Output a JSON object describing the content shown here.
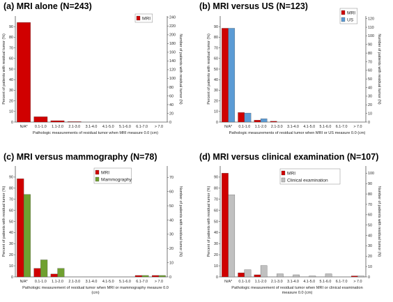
{
  "colors": {
    "mri": "#d00000",
    "us": "#5b9bd5",
    "mammography": "#70a030",
    "clinical": "#c0c0c0"
  },
  "chart_data": [
    {
      "panel": "(a)",
      "type": "bar",
      "title": "MRI alone (N=243)",
      "categories": [
        "N/A*",
        "0.1-1.0",
        "1.1-2.0",
        "2.1-3.0",
        "3.1-4.0",
        "4.1-5.0",
        "5.1-6.0",
        "6.1-7.0",
        "> 7.0"
      ],
      "series": [
        {
          "name": "MRI",
          "color": "#d00000",
          "values": [
            94.0,
            5.0,
            1.3,
            0.4,
            0,
            0,
            0,
            0,
            0
          ]
        }
      ],
      "xlabel": "Pathologic measurements of residual tumor when MRI measure 0.0 (cm)",
      "ylabel": "Percent of patients with residual tumor (%)",
      "ylim": [
        0,
        100
      ],
      "yticks": [
        0,
        10,
        20,
        30,
        40,
        50,
        60,
        70,
        80,
        90
      ],
      "y2label": "Number of patients with residual tumor (N)",
      "y2lim": [
        0,
        243
      ],
      "y2ticks": [
        0,
        20,
        40,
        60,
        80,
        100,
        120,
        140,
        160,
        180,
        200,
        220,
        240
      ],
      "legend_position": "top-right"
    },
    {
      "panel": "(b)",
      "type": "bar",
      "title": "MRI versus US (N=123)",
      "categories": [
        "N/A*",
        "0.1-1.0",
        "1.1-2.0",
        "2.1-3.0",
        "3.1-4.0",
        "4.1-5.0",
        "5.1-6.0",
        "6.1-7.0",
        "> 7.0"
      ],
      "series": [
        {
          "name": "MRI",
          "color": "#d00000",
          "values": [
            88.5,
            9.0,
            1.8,
            0.8,
            0,
            0,
            0,
            0,
            0
          ]
        },
        {
          "name": "US",
          "color": "#5b9bd5",
          "values": [
            88.5,
            8.5,
            3.2,
            0,
            0,
            0,
            0,
            0,
            0
          ]
        }
      ],
      "xlabel": "Pathologic measurements of residual tumor when MRI or US measure 0.0 (cm)",
      "ylabel": "Percent of patients with residual tumor (%)",
      "ylim": [
        0,
        100
      ],
      "yticks": [
        0,
        10,
        20,
        30,
        40,
        50,
        60,
        70,
        80,
        90
      ],
      "y2label": "Number of patients with residual tumor (N)",
      "y2lim": [
        0,
        123
      ],
      "y2ticks": [
        0,
        10,
        20,
        30,
        40,
        50,
        60,
        70,
        80,
        90,
        100,
        110,
        120
      ],
      "legend_position": "top-right"
    },
    {
      "panel": "(c)",
      "type": "bar",
      "title": "MRI versus mammography (N=78)",
      "categories": [
        "N/A*",
        "0.1-1.0",
        "1.1-2.0",
        "2.1-3.0",
        "3.1-4.0",
        "4.1-5.0",
        "5.1-6.0",
        "6.1-7.0",
        "> 7.0"
      ],
      "series": [
        {
          "name": "MRI",
          "color": "#d00000",
          "values": [
            88.5,
            7.7,
            2.6,
            0,
            0,
            0,
            0,
            1.3,
            1.3
          ]
        },
        {
          "name": "Mammography",
          "color": "#70a030",
          "values": [
            74.4,
            15.4,
            7.7,
            0,
            0,
            0,
            0,
            1.3,
            1.3
          ]
        }
      ],
      "xlabel": "Pathologic measurement of residual tumor when MRI or mammography measure 0.0 (cm)",
      "ylabel": "Percent of patients with residual tumor (%)",
      "ylim": [
        0,
        100
      ],
      "yticks": [
        0,
        10,
        20,
        30,
        40,
        50,
        60,
        70,
        80,
        90
      ],
      "y2label": "Number of patients with residual tumor (N)",
      "y2lim": [
        0,
        78
      ],
      "y2ticks": [
        0,
        10,
        20,
        30,
        40,
        50,
        60,
        70
      ],
      "legend_position": "top-right"
    },
    {
      "panel": "(d)",
      "type": "bar",
      "title": "MRI versus clinical examination (N=107)",
      "categories": [
        "N/A*",
        "0.1-1.0",
        "1.1-2.0",
        "2.1-3.0",
        "3.1-4.0",
        "4.1-5.0",
        "5.1-6.0",
        "6.1-7.0",
        "> 7.0"
      ],
      "series": [
        {
          "name": "MRI",
          "color": "#d00000",
          "values": [
            93.5,
            3.7,
            1.9,
            0,
            0,
            0,
            0,
            0,
            0.9
          ]
        },
        {
          "name": "Clinical examination",
          "color": "#c0c0c0",
          "values": [
            74.0,
            6.5,
            10.3,
            2.8,
            1.9,
            0.9,
            2.8,
            0,
            0.9
          ]
        }
      ],
      "xlabel": "Pathologic measurement of residual tumor when MRI or clinical examination measure 0.0 (cm)",
      "ylabel": "Percent of patients with residual tumor (%)",
      "ylim": [
        0,
        100
      ],
      "yticks": [
        0,
        10,
        20,
        30,
        40,
        50,
        60,
        70,
        80,
        90
      ],
      "y2label": "Number of patients with residual tumor (N)",
      "y2lim": [
        0,
        107
      ],
      "y2ticks": [
        0,
        10,
        20,
        30,
        40,
        50,
        60,
        70,
        80,
        90,
        100
      ],
      "legend_position": "top-right"
    }
  ]
}
